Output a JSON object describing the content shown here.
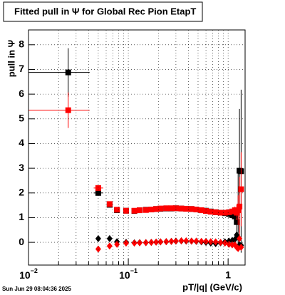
{
  "chart_data": {
    "type": "errorbar",
    "title": "Fitted pull in  Ψ  for Global Rec Pion EtapT",
    "y_label": "pull in  Ψ",
    "x_label": "pT/|q| (GeV/c)",
    "timestamp": "Sun Jun 29 08:04:36 2025",
    "log_x": true,
    "grid": true,
    "xlim": [
      0.01,
      1.48
    ],
    "ylim": [
      -0.92,
      8.6
    ],
    "xticks": [
      {
        "value": 0.01,
        "label": "10",
        "sup": "−2"
      },
      {
        "value": 0.1,
        "label": "10",
        "sup": "−1"
      },
      1
    ],
    "xminorticks": [
      0.02,
      0.03,
      0.04,
      0.05,
      0.06,
      0.07,
      0.08,
      0.09,
      0.2,
      0.3,
      0.4,
      0.5,
      0.6,
      0.7,
      0.8,
      0.9
    ],
    "yticks": [
      0,
      1,
      2,
      3,
      4,
      5,
      6,
      7,
      8
    ],
    "x": [
      0.025,
      0.05,
      0.065,
      0.077,
      0.095,
      0.115,
      0.13,
      0.15,
      0.17,
      0.19,
      0.21,
      0.24,
      0.27,
      0.3,
      0.34,
      0.38,
      0.43,
      0.48,
      0.54,
      0.6,
      0.67,
      0.75,
      0.84,
      0.93,
      1.02,
      1.1,
      1.17,
      1.22,
      1.26,
      1.3,
      1.35
    ],
    "series": [
      {
        "marker": "square",
        "color": "#000000",
        "values": [
          6.88,
          2.0,
          1.52,
          1.3,
          1.28,
          1.27,
          1.3,
          1.32,
          1.33,
          1.35,
          1.36,
          1.37,
          1.37,
          1.38,
          1.37,
          1.36,
          1.35,
          1.33,
          1.3,
          1.28,
          1.25,
          1.22,
          1.2,
          1.18,
          1.15,
          1.1,
          1.05,
          0.82,
          1.3,
          2.9,
          2.88
        ],
        "errors": [
          0.98,
          0.1,
          0.06,
          0.05,
          0.04,
          0.03,
          0.03,
          0.03,
          0.03,
          0.03,
          0.03,
          0.03,
          0.03,
          0.03,
          0.03,
          0.03,
          0.03,
          0.04,
          0.04,
          0.05,
          0.05,
          0.06,
          0.07,
          0.08,
          0.1,
          0.15,
          0.2,
          0.5,
          1.5,
          2.5,
          3.3
        ],
        "x_ranges": [
          [
            0.01,
            0.041
          ],
          [
            0.045,
            0.056
          ],
          null,
          null,
          null,
          null,
          null,
          null,
          null,
          null,
          null,
          null,
          null,
          null,
          null,
          null,
          null,
          null,
          null,
          null,
          null,
          null,
          null,
          null,
          null,
          null,
          null,
          null,
          null,
          null,
          null
        ]
      },
      {
        "marker": "square",
        "color": "#ff0000",
        "values": [
          5.35,
          2.2,
          1.55,
          1.32,
          1.28,
          1.28,
          1.3,
          1.31,
          1.33,
          1.35,
          1.37,
          1.38,
          1.38,
          1.38,
          1.37,
          1.36,
          1.35,
          1.33,
          1.3,
          1.27,
          1.24,
          1.22,
          1.2,
          1.2,
          1.22,
          1.25,
          1.3,
          1.2,
          1.3,
          1.45,
          2.15
        ],
        "errors": [
          0.72,
          0.08,
          0.05,
          0.04,
          0.03,
          0.03,
          0.03,
          0.03,
          0.03,
          0.03,
          0.03,
          0.03,
          0.03,
          0.03,
          0.03,
          0.03,
          0.03,
          0.03,
          0.04,
          0.04,
          0.05,
          0.05,
          0.06,
          0.07,
          0.08,
          0.1,
          0.15,
          0.3,
          0.6,
          1.2,
          1.5
        ],
        "x_ranges": [
          [
            0.01,
            0.041
          ],
          [
            0.045,
            0.056
          ],
          null,
          null,
          null,
          null,
          null,
          null,
          null,
          null,
          null,
          null,
          null,
          null,
          null,
          null,
          null,
          null,
          null,
          null,
          null,
          null,
          null,
          null,
          null,
          null,
          null,
          null,
          null,
          null,
          null
        ]
      },
      {
        "marker": "diamond",
        "color": "#000000",
        "values": [
          null,
          0.15,
          0.15,
          0.03,
          0.0,
          -0.02,
          -0.01,
          -0.01,
          0.0,
          0.01,
          0.02,
          0.03,
          0.04,
          0.05,
          0.06,
          0.05,
          0.05,
          0.04,
          0.02,
          0.0,
          -0.03,
          -0.05,
          -0.02,
          0.02,
          0.05,
          0.08,
          0.12,
          0.3,
          0.2,
          -0.1,
          -0.12
        ]
      },
      {
        "marker": "diamond",
        "color": "#ff0000",
        "values": [
          null,
          -0.27,
          -0.15,
          -0.08,
          -0.03,
          -0.03,
          -0.02,
          -0.01,
          0.0,
          0.01,
          0.02,
          0.03,
          0.04,
          0.05,
          0.06,
          0.06,
          0.05,
          0.05,
          0.04,
          0.04,
          0.03,
          0.02,
          0.0,
          -0.03,
          -0.08,
          -0.1,
          -0.1,
          -0.2,
          -0.25,
          0.15,
          -0.2
        ]
      }
    ]
  }
}
